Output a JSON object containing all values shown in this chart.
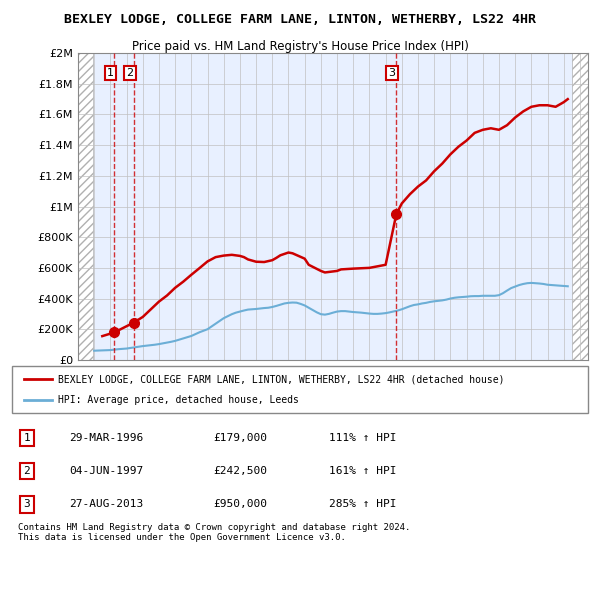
{
  "title_line1": "BEXLEY LODGE, COLLEGE FARM LANE, LINTON, WETHERBY, LS22 4HR",
  "title_line2": "Price paid vs. HM Land Registry's House Price Index (HPI)",
  "ylim": [
    0,
    2000000
  ],
  "yticks": [
    0,
    200000,
    400000,
    600000,
    800000,
    1000000,
    1200000,
    1400000,
    1600000,
    1800000,
    2000000
  ],
  "ytick_labels": [
    "£0",
    "£200K",
    "£400K",
    "£600K",
    "£800K",
    "£1M",
    "£1.2M",
    "£1.4M",
    "£1.6M",
    "£1.8M",
    "£2M"
  ],
  "hpi_color": "#6baed6",
  "price_color": "#cc0000",
  "vline_color": "#cc0000",
  "bg_hatch_color": "#d0d0d0",
  "plot_bg": "#e8f0ff",
  "transactions": [
    {
      "date": 1996.24,
      "price": 179000,
      "label": "1"
    },
    {
      "date": 1997.43,
      "price": 242500,
      "label": "2"
    },
    {
      "date": 2013.66,
      "price": 950000,
      "label": "3"
    }
  ],
  "hpi_data_x": [
    1995,
    1995.25,
    1995.5,
    1995.75,
    1996,
    1996.25,
    1996.5,
    1996.75,
    1997,
    1997.25,
    1997.5,
    1997.75,
    1998,
    1998.25,
    1998.5,
    1998.75,
    1999,
    1999.25,
    1999.5,
    1999.75,
    2000,
    2000.25,
    2000.5,
    2000.75,
    2001,
    2001.25,
    2001.5,
    2001.75,
    2002,
    2002.25,
    2002.5,
    2002.75,
    2003,
    2003.25,
    2003.5,
    2003.75,
    2004,
    2004.25,
    2004.5,
    2004.75,
    2005,
    2005.25,
    2005.5,
    2005.75,
    2006,
    2006.25,
    2006.5,
    2006.75,
    2007,
    2007.25,
    2007.5,
    2007.75,
    2008,
    2008.25,
    2008.5,
    2008.75,
    2009,
    2009.25,
    2009.5,
    2009.75,
    2010,
    2010.25,
    2010.5,
    2010.75,
    2011,
    2011.25,
    2011.5,
    2011.75,
    2012,
    2012.25,
    2012.5,
    2012.75,
    2013,
    2013.25,
    2013.5,
    2013.75,
    2014,
    2014.25,
    2014.5,
    2014.75,
    2015,
    2015.25,
    2015.5,
    2015.75,
    2016,
    2016.25,
    2016.5,
    2016.75,
    2017,
    2017.25,
    2017.5,
    2017.75,
    2018,
    2018.25,
    2018.5,
    2018.75,
    2019,
    2019.25,
    2019.5,
    2019.75,
    2020,
    2020.25,
    2020.5,
    2020.75,
    2021,
    2021.25,
    2021.5,
    2021.75,
    2022,
    2022.25,
    2022.5,
    2022.75,
    2023,
    2023.25,
    2023.5,
    2023.75,
    2024,
    2024.25
  ],
  "hpi_data_y": [
    60000,
    61000,
    62000,
    63000,
    64000,
    67000,
    70000,
    72000,
    74000,
    78000,
    82000,
    86000,
    90000,
    93000,
    96000,
    99000,
    103000,
    108000,
    113000,
    118000,
    124000,
    132000,
    140000,
    148000,
    156000,
    168000,
    180000,
    190000,
    200000,
    218000,
    236000,
    254000,
    272000,
    285000,
    298000,
    308000,
    315000,
    322000,
    328000,
    330000,
    332000,
    335000,
    338000,
    340000,
    345000,
    352000,
    360000,
    368000,
    372000,
    374000,
    373000,
    365000,
    355000,
    340000,
    325000,
    310000,
    298000,
    295000,
    300000,
    308000,
    315000,
    318000,
    318000,
    315000,
    312000,
    310000,
    308000,
    305000,
    302000,
    300000,
    300000,
    302000,
    305000,
    310000,
    316000,
    322000,
    330000,
    340000,
    350000,
    358000,
    362000,
    368000,
    372000,
    378000,
    382000,
    385000,
    388000,
    393000,
    400000,
    405000,
    408000,
    410000,
    412000,
    415000,
    416000,
    416000,
    418000,
    418000,
    418000,
    418000,
    422000,
    435000,
    452000,
    468000,
    478000,
    488000,
    495000,
    500000,
    502000,
    500000,
    498000,
    495000,
    490000,
    488000,
    486000,
    484000,
    482000,
    480000
  ],
  "price_data_x": [
    1995.5,
    1996.24,
    1997.43,
    1998,
    1998.5,
    1999,
    1999.5,
    2000,
    2000.5,
    2001,
    2001.5,
    2002,
    2002.5,
    2003,
    2003.5,
    2004,
    2004.25,
    2004.5,
    2005,
    2005.5,
    2006,
    2006.25,
    2006.5,
    2007,
    2007.25,
    2008,
    2008.25,
    2009,
    2009.25,
    2010,
    2010.25,
    2011,
    2012,
    2013,
    2013.66,
    2014,
    2014.5,
    2015,
    2015.5,
    2016,
    2016.5,
    2017,
    2017.5,
    2018,
    2018.5,
    2019,
    2019.5,
    2020,
    2020.5,
    2021,
    2021.5,
    2022,
    2022.5,
    2023,
    2023.5,
    2024,
    2024.25
  ],
  "price_data_y": [
    155000,
    179000,
    242500,
    280000,
    330000,
    380000,
    420000,
    470000,
    510000,
    555000,
    598000,
    642000,
    670000,
    680000,
    685000,
    678000,
    670000,
    655000,
    640000,
    638000,
    650000,
    665000,
    682000,
    700000,
    695000,
    660000,
    620000,
    580000,
    570000,
    580000,
    590000,
    595000,
    600000,
    620000,
    950000,
    1020000,
    1080000,
    1130000,
    1170000,
    1230000,
    1280000,
    1340000,
    1390000,
    1430000,
    1480000,
    1500000,
    1510000,
    1500000,
    1530000,
    1580000,
    1620000,
    1650000,
    1660000,
    1660000,
    1650000,
    1680000,
    1700000
  ],
  "legend_line1": "BEXLEY LODGE, COLLEGE FARM LANE, LINTON, WETHERBY, LS22 4HR (detached house)",
  "legend_line2": "HPI: Average price, detached house, Leeds",
  "table_data": [
    {
      "num": "1",
      "date": "29-MAR-1996",
      "price": "£179,000",
      "hpi": "111% ↑ HPI"
    },
    {
      "num": "2",
      "date": "04-JUN-1997",
      "price": "£242,500",
      "hpi": "161% ↑ HPI"
    },
    {
      "num": "3",
      "date": "27-AUG-2013",
      "price": "£950,000",
      "hpi": "285% ↑ HPI"
    }
  ],
  "footnote": "Contains HM Land Registry data © Crown copyright and database right 2024.\nThis data is licensed under the Open Government Licence v3.0.",
  "xlim_start": 1994,
  "xlim_end": 2025.5,
  "xticks": [
    1994,
    1995,
    1996,
    1997,
    1998,
    1999,
    2000,
    2001,
    2002,
    2003,
    2004,
    2005,
    2006,
    2007,
    2008,
    2009,
    2010,
    2011,
    2012,
    2013,
    2014,
    2015,
    2016,
    2017,
    2018,
    2019,
    2020,
    2021,
    2022,
    2023,
    2024,
    2025
  ]
}
